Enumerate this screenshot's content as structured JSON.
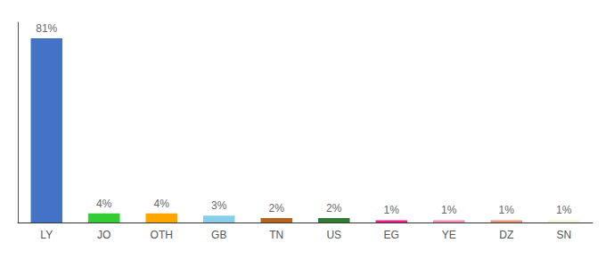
{
  "chart_data": {
    "type": "bar",
    "categories": [
      "LY",
      "JO",
      "OTH",
      "GB",
      "TN",
      "US",
      "EG",
      "YE",
      "DZ",
      "SN"
    ],
    "values": [
      81,
      4,
      4,
      3,
      2,
      2,
      1,
      1,
      1,
      1
    ],
    "value_labels": [
      "81%",
      "4%",
      "4%",
      "3%",
      "2%",
      "2%",
      "1%",
      "1%",
      "1%",
      "1%"
    ],
    "colors": [
      "#4472C4",
      "#32CD32",
      "#FFA500",
      "#87CEEB",
      "#B8621B",
      "#2E7D32",
      "#E91E8C",
      "#F48FB1",
      "#E8967A",
      "#F5F5DC"
    ],
    "ylim": [
      0,
      88
    ],
    "grid": false,
    "data_labels": true,
    "tick_labels": "x"
  }
}
